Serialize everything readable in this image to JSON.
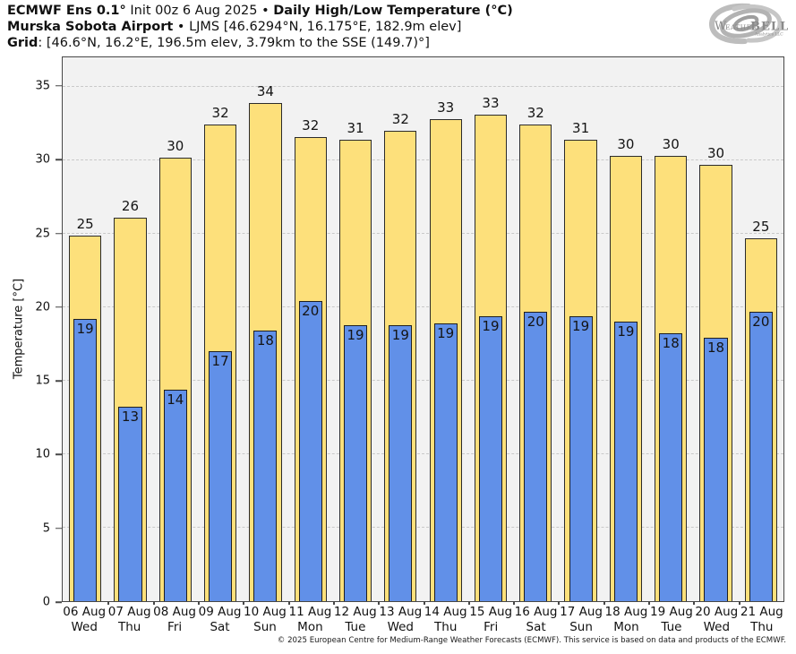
{
  "header": {
    "line1_bold1": "ECMWF Ens 0.1°",
    "line1_mid": " Init 00z 6 Aug 2025 • ",
    "line1_bold2": "Daily High/Low Temperature (°C)",
    "line2_bold": "Murska Sobota Airport",
    "line2_rest": " • LJMS [46.6294°N, 16.175°E, 182.9m elev]",
    "line3_bold": "Grid",
    "line3_rest": ": [46.6°N, 16.2°E, 196.5m elev, 3.79km to the SSE (149.7)°]"
  },
  "logo": {
    "text_w": "W",
    "text_eather": "EATHER",
    "text_bell": "BELL",
    "text_sub": "Analytics LLC"
  },
  "chart_data": {
    "type": "bar",
    "title": "Daily High/Low Temperature (°C)",
    "ylabel": "Temperature [°C]",
    "ylim": [
      0,
      37
    ],
    "yticks": [
      0,
      5,
      10,
      15,
      20,
      25,
      30,
      35
    ],
    "grid": "horizontal-dashed",
    "legend": "none",
    "categories": [
      {
        "date": "06 Aug",
        "day": "Wed"
      },
      {
        "date": "07 Aug",
        "day": "Thu"
      },
      {
        "date": "08 Aug",
        "day": "Fri"
      },
      {
        "date": "09 Aug",
        "day": "Sat"
      },
      {
        "date": "10 Aug",
        "day": "Sun"
      },
      {
        "date": "11 Aug",
        "day": "Mon"
      },
      {
        "date": "12 Aug",
        "day": "Tue"
      },
      {
        "date": "13 Aug",
        "day": "Wed"
      },
      {
        "date": "14 Aug",
        "day": "Thu"
      },
      {
        "date": "15 Aug",
        "day": "Fri"
      },
      {
        "date": "16 Aug",
        "day": "Sat"
      },
      {
        "date": "17 Aug",
        "day": "Sun"
      },
      {
        "date": "18 Aug",
        "day": "Mon"
      },
      {
        "date": "19 Aug",
        "day": "Tue"
      },
      {
        "date": "20 Aug",
        "day": "Wed"
      },
      {
        "date": "21 Aug",
        "day": "Thu"
      }
    ],
    "series": [
      {
        "name": "Daily High",
        "color": "#fde07b",
        "values": [
          25,
          26,
          30,
          32,
          34,
          32,
          31,
          32,
          33,
          33,
          32,
          31,
          30,
          30,
          30,
          25
        ],
        "bar_heights": [
          24.9,
          26.1,
          30.2,
          32.4,
          33.9,
          31.6,
          31.4,
          32.0,
          32.8,
          33.1,
          32.4,
          31.4,
          30.3,
          30.3,
          29.7,
          24.7
        ]
      },
      {
        "name": "Daily Low",
        "color": "#6190e8",
        "values": [
          19,
          13,
          14,
          17,
          18,
          20,
          19,
          19,
          19,
          19,
          20,
          19,
          19,
          18,
          18,
          20
        ],
        "bar_heights": [
          19.2,
          13.2,
          14.4,
          17.0,
          18.4,
          20.4,
          18.8,
          18.8,
          18.9,
          19.4,
          19.7,
          19.4,
          19.0,
          18.2,
          17.9,
          19.7
        ]
      }
    ]
  },
  "colors": {
    "high_bar": "#fde07b",
    "low_bar": "#6190e8",
    "bar_border": "#2b2b2b",
    "plot_background": "#f2f2f2",
    "gridline": "#c9c9c9",
    "axis": "#474747"
  },
  "footer": {
    "copyright": "© 2025 European Centre for Medium-Range Weather Forecasts (ECMWF). This service is based on data and products of the ECMWF."
  }
}
